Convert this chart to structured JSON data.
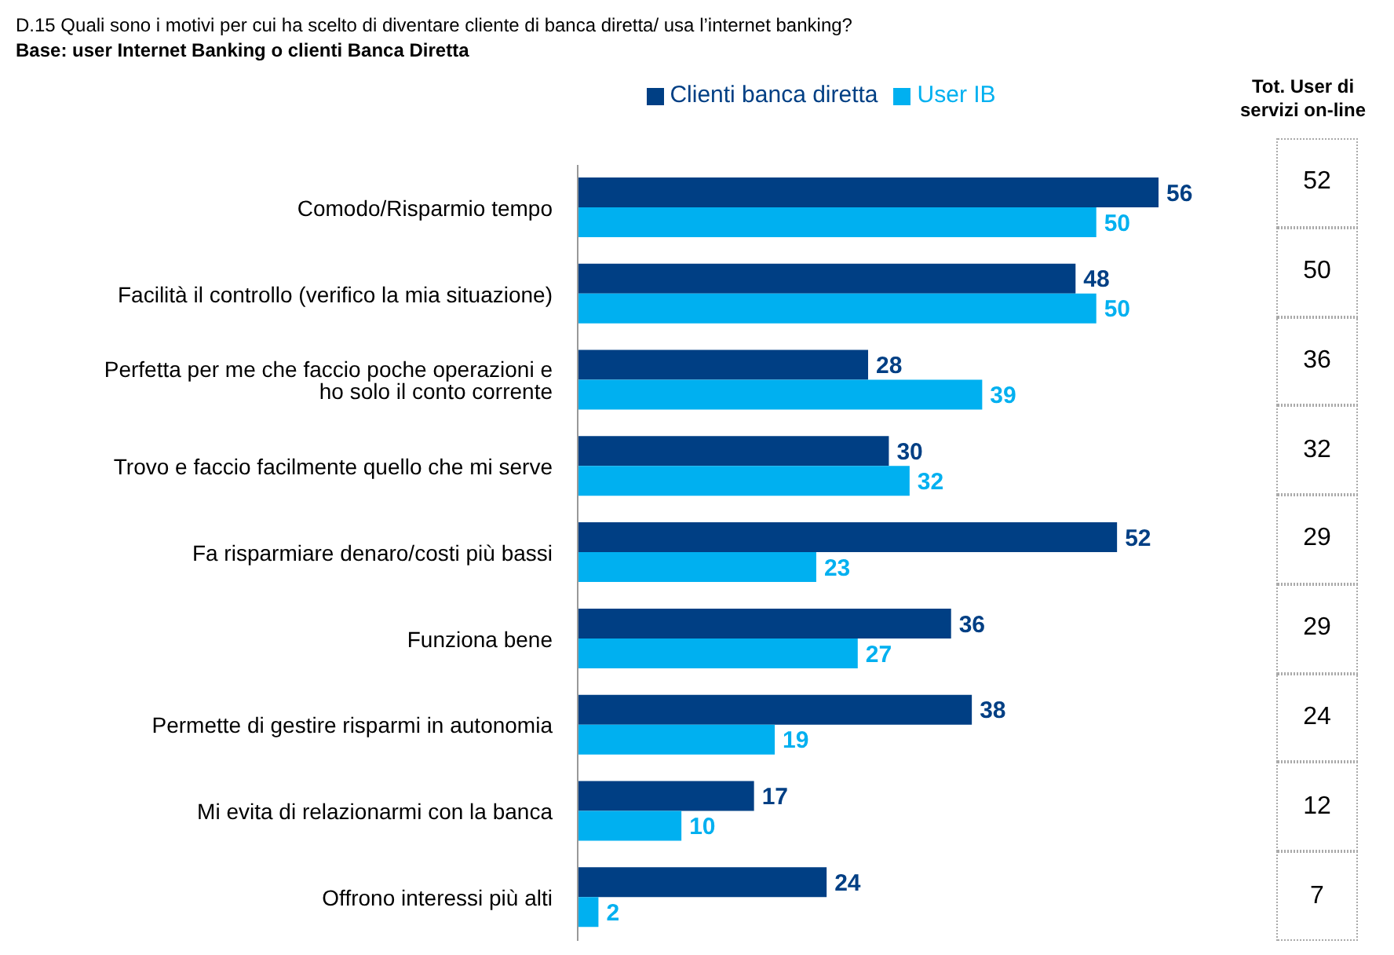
{
  "chart_data": {
    "type": "bar",
    "orientation": "horizontal",
    "title": "D.15 Quali sono i motivi per cui ha scelto di diventare cliente di banca diretta/ usa l’internet banking?",
    "subtitle": "Base: user Internet Banking o clienti Banca Diretta",
    "categories": [
      "Comodo/Risparmio tempo",
      "Facilità il controllo (verifico la mia situazione)",
      "Perfetta per me che faccio poche operazioni e ho solo il conto corrente",
      "Trovo e faccio facilmente quello che mi serve",
      "Fa risparmiare denaro/costi più bassi",
      "Funziona bene",
      "Permette di gestire risparmi in autonomia",
      "Mi evita di relazionarmi con la banca",
      "Offrono interessi più alti"
    ],
    "series": [
      {
        "name": "Clienti banca diretta",
        "color": "#003f84",
        "values": [
          56,
          48,
          28,
          30,
          52,
          36,
          38,
          17,
          24
        ]
      },
      {
        "name": "User IB",
        "color": "#00b0f0",
        "values": [
          50,
          50,
          39,
          32,
          23,
          27,
          19,
          10,
          2
        ]
      }
    ],
    "annotations": [
      "Tot.  User di servizi on-line",
      "52",
      "50",
      "36",
      "32",
      "29",
      "29",
      "24",
      "12",
      "7"
    ],
    "data_labels": true,
    "legend": "top",
    "grid": false
  }
}
